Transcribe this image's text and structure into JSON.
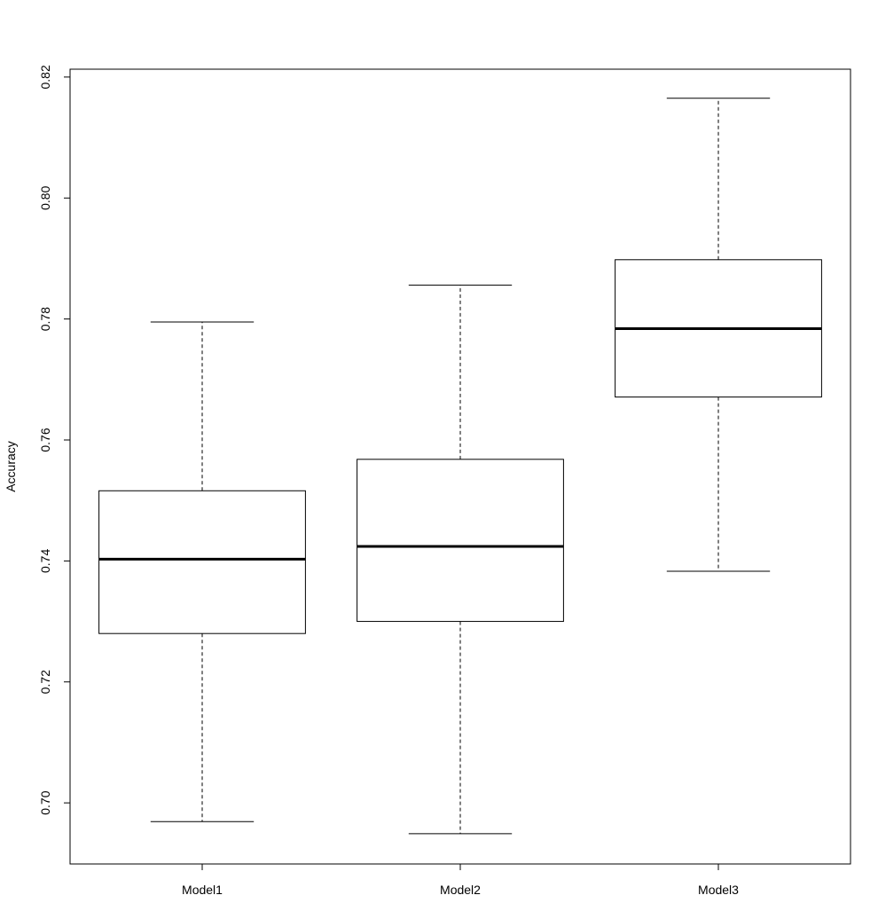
{
  "chart_data": {
    "type": "boxplot",
    "title": "",
    "xlabel": "",
    "ylabel": "Accuracy",
    "categories": [
      "Model1",
      "Model2",
      "Model3"
    ],
    "boxes": [
      {
        "category": "Model1",
        "min": 0.6969,
        "q1": 0.728,
        "median": 0.7403,
        "q3": 0.7516,
        "max": 0.7795
      },
      {
        "category": "Model2",
        "min": 0.6949,
        "q1": 0.73,
        "median": 0.7424,
        "q3": 0.7568,
        "max": 0.7856
      },
      {
        "category": "Model3",
        "min": 0.7383,
        "q1": 0.7671,
        "median": 0.7784,
        "q3": 0.7898,
        "max": 0.8165
      }
    ],
    "yticks": [
      "0.70",
      "0.72",
      "0.74",
      "0.76",
      "0.78",
      "0.80",
      "0.82"
    ],
    "ylim": [
      0.6899,
      0.8213
    ],
    "grid": false,
    "legend": "none"
  }
}
